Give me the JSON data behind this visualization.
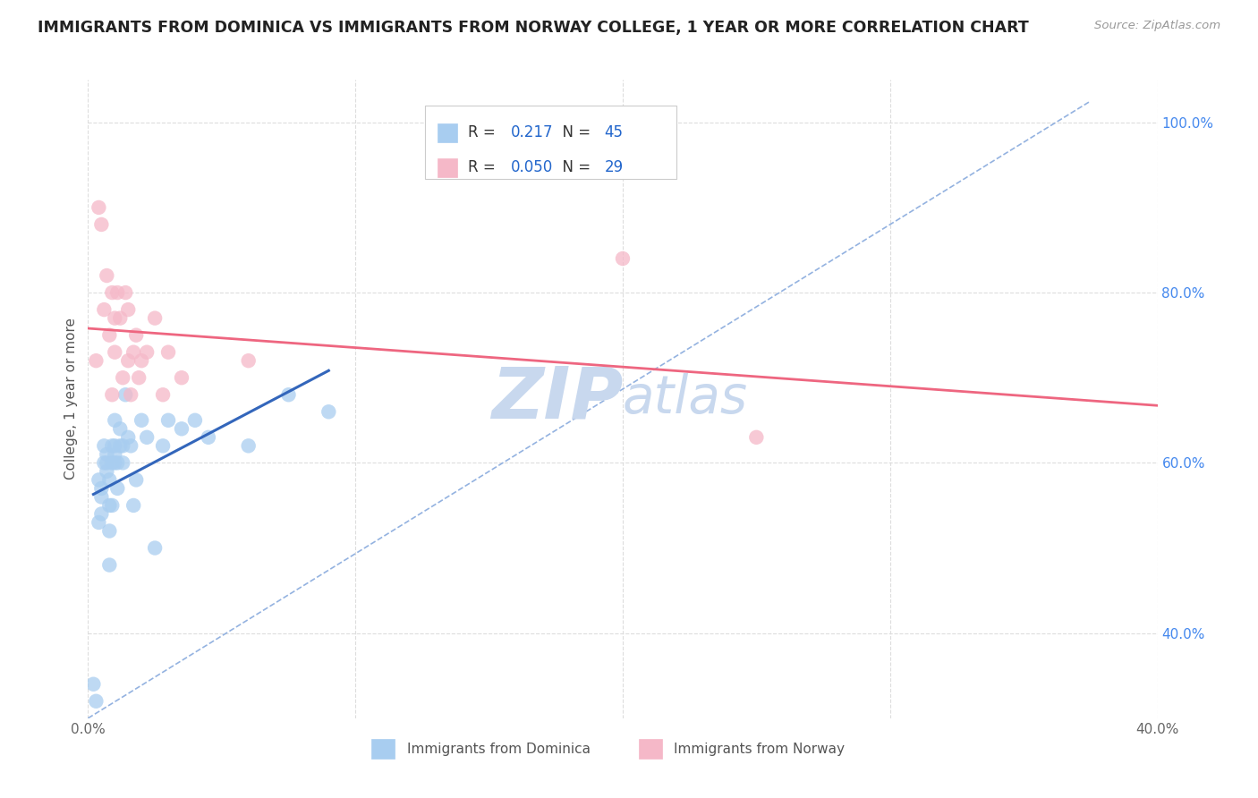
{
  "title": "IMMIGRANTS FROM DOMINICA VS IMMIGRANTS FROM NORWAY COLLEGE, 1 YEAR OR MORE CORRELATION CHART",
  "source_text": "Source: ZipAtlas.com",
  "ylabel": "College, 1 year or more",
  "xlim": [
    0.0,
    0.4
  ],
  "ylim": [
    0.3,
    1.05
  ],
  "xtick_positions": [
    0.0,
    0.05,
    0.1,
    0.15,
    0.2,
    0.25,
    0.3,
    0.35,
    0.4
  ],
  "xticklabels": [
    "0.0%",
    "",
    "",
    "",
    "",
    "",
    "",
    "",
    "40.0%"
  ],
  "ytick_positions": [
    0.4,
    0.6,
    0.8,
    1.0
  ],
  "yticklabels": [
    "40.0%",
    "60.0%",
    "80.0%",
    "100.0%"
  ],
  "grid_xticks": [
    0.0,
    0.1,
    0.2,
    0.3,
    0.4
  ],
  "grid_yticks": [
    0.4,
    0.6,
    0.8,
    1.0
  ],
  "dominica_color": "#a8cdf0",
  "norway_color": "#f5b8c8",
  "dominica_line_color": "#3366bb",
  "norway_line_color": "#ee6680",
  "diagonal_color": "#88aadd",
  "R_dominica": 0.217,
  "N_dominica": 45,
  "R_norway": 0.05,
  "N_norway": 29,
  "dominica_x": [
    0.002,
    0.003,
    0.004,
    0.004,
    0.005,
    0.005,
    0.005,
    0.006,
    0.006,
    0.007,
    0.007,
    0.007,
    0.008,
    0.008,
    0.008,
    0.008,
    0.009,
    0.009,
    0.009,
    0.01,
    0.01,
    0.01,
    0.01,
    0.011,
    0.011,
    0.012,
    0.012,
    0.013,
    0.013,
    0.014,
    0.015,
    0.016,
    0.017,
    0.018,
    0.02,
    0.022,
    0.025,
    0.028,
    0.03,
    0.035,
    0.04,
    0.045,
    0.06,
    0.075,
    0.09
  ],
  "dominica_y": [
    0.34,
    0.32,
    0.58,
    0.53,
    0.56,
    0.54,
    0.57,
    0.6,
    0.62,
    0.59,
    0.61,
    0.6,
    0.55,
    0.58,
    0.52,
    0.48,
    0.62,
    0.6,
    0.55,
    0.6,
    0.62,
    0.61,
    0.65,
    0.6,
    0.57,
    0.62,
    0.64,
    0.6,
    0.62,
    0.68,
    0.63,
    0.62,
    0.55,
    0.58,
    0.65,
    0.63,
    0.5,
    0.62,
    0.65,
    0.64,
    0.65,
    0.63,
    0.62,
    0.68,
    0.66
  ],
  "norway_x": [
    0.003,
    0.004,
    0.005,
    0.006,
    0.007,
    0.008,
    0.009,
    0.009,
    0.01,
    0.01,
    0.011,
    0.012,
    0.013,
    0.014,
    0.015,
    0.015,
    0.016,
    0.017,
    0.018,
    0.019,
    0.02,
    0.022,
    0.025,
    0.028,
    0.03,
    0.035,
    0.06,
    0.2,
    0.25
  ],
  "norway_y": [
    0.72,
    0.9,
    0.88,
    0.78,
    0.82,
    0.75,
    0.8,
    0.68,
    0.77,
    0.73,
    0.8,
    0.77,
    0.7,
    0.8,
    0.72,
    0.78,
    0.68,
    0.73,
    0.75,
    0.7,
    0.72,
    0.73,
    0.77,
    0.68,
    0.73,
    0.7,
    0.72,
    0.84,
    0.63
  ],
  "background_color": "#ffffff",
  "grid_color": "#dddddd",
  "title_color": "#222222",
  "title_fontsize": 12.5,
  "ytick_color": "#4488ee",
  "xtick_color": "#666666",
  "watermark_zip": "ZIP",
  "watermark_atlas": "atlas",
  "watermark_color_zip": "#c8d8ee",
  "watermark_color_atlas": "#c8d8ee",
  "watermark_fontsize": 58
}
